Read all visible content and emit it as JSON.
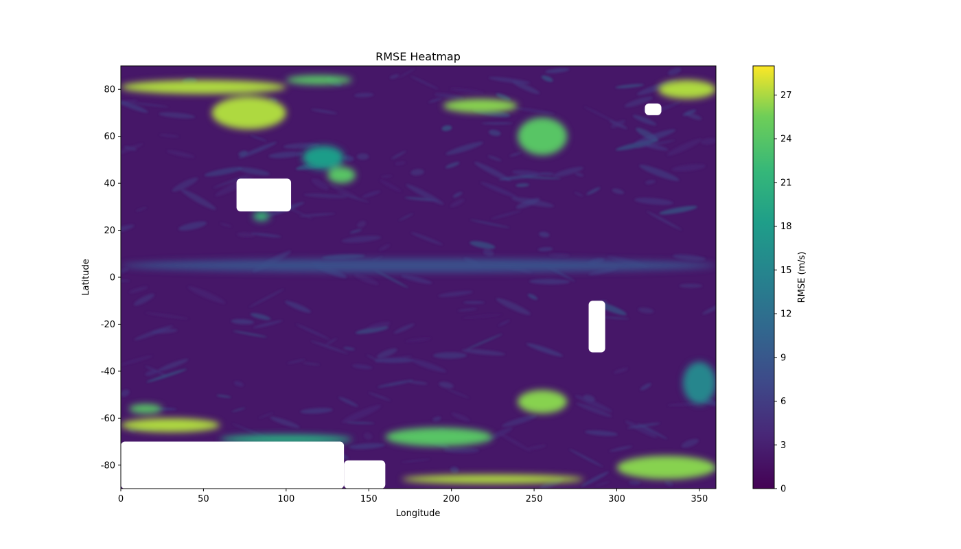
{
  "chart_data": {
    "type": "heatmap",
    "title": "RMSE Heatmap",
    "xlabel": "Longitude",
    "ylabel": "Latitude",
    "xlim": [
      0,
      360
    ],
    "ylim": [
      -90,
      90
    ],
    "xticks": [
      0,
      50,
      100,
      150,
      200,
      250,
      300,
      350
    ],
    "yticks": [
      -80,
      -60,
      -40,
      -20,
      0,
      20,
      40,
      60,
      80
    ],
    "colorbar": {
      "label": "RMSE (m/s)",
      "colormap": "viridis",
      "range": [
        0,
        29
      ],
      "ticks": [
        0,
        3,
        6,
        9,
        12,
        15,
        18,
        21,
        24,
        27
      ]
    },
    "colors": {
      "low": "#440154",
      "mid": "#21918c",
      "high": "#fde725",
      "missing": "#ffffff"
    },
    "background_level": 2,
    "high_error_regions": [
      {
        "lon": [
          0,
          100
        ],
        "lat": [
          78,
          84
        ],
        "value": 27
      },
      {
        "lon": [
          100,
          140
        ],
        "lat": [
          82,
          86
        ],
        "value": 24
      },
      {
        "lon": [
          55,
          100
        ],
        "lat": [
          63,
          77
        ],
        "value": 27
      },
      {
        "lon": [
          325,
          360
        ],
        "lat": [
          76,
          84
        ],
        "value": 27
      },
      {
        "lon": [
          195,
          240
        ],
        "lat": [
          70,
          76
        ],
        "value": 26
      },
      {
        "lon": [
          240,
          270
        ],
        "lat": [
          52,
          68
        ],
        "value": 24
      },
      {
        "lon": [
          125,
          142
        ],
        "lat": [
          40,
          47
        ],
        "value": 24
      },
      {
        "lon": [
          80,
          90
        ],
        "lat": [
          24,
          28
        ],
        "value": 22
      },
      {
        "lon": [
          110,
          135
        ],
        "lat": [
          46,
          56
        ],
        "value": 18
      },
      {
        "lon": [
          0,
          60
        ],
        "lat": [
          -66,
          -60
        ],
        "value": 27
      },
      {
        "lon": [
          5,
          25
        ],
        "lat": [
          -58,
          -54
        ],
        "value": 24
      },
      {
        "lon": [
          240,
          270
        ],
        "lat": [
          -58,
          -48
        ],
        "value": 26
      },
      {
        "lon": [
          160,
          225
        ],
        "lat": [
          -72,
          -64
        ],
        "value": 24
      },
      {
        "lon": [
          170,
          280
        ],
        "lat": [
          -88,
          -84
        ],
        "value": 27
      },
      {
        "lon": [
          300,
          360
        ],
        "lat": [
          -86,
          -76
        ],
        "value": 26
      },
      {
        "lon": [
          60,
          140
        ],
        "lat": [
          -71,
          -67
        ],
        "value": 20
      },
      {
        "lon": [
          340,
          360
        ],
        "lat": [
          -54,
          -36
        ],
        "value": 15
      },
      {
        "lon": [
          0,
          360
        ],
        "lat": [
          2,
          8
        ],
        "value": 8
      }
    ],
    "missing_regions": [
      {
        "lon": [
          70,
          103
        ],
        "lat": [
          28,
          42
        ]
      },
      {
        "lon": [
          283,
          293
        ],
        "lat": [
          -32,
          -10
        ]
      },
      {
        "lon": [
          317,
          327
        ],
        "lat": [
          69,
          74
        ]
      },
      {
        "lon": [
          0,
          135
        ],
        "lat": [
          -90,
          -70
        ]
      },
      {
        "lon": [
          135,
          160
        ],
        "lat": [
          -90,
          -78
        ]
      }
    ]
  }
}
